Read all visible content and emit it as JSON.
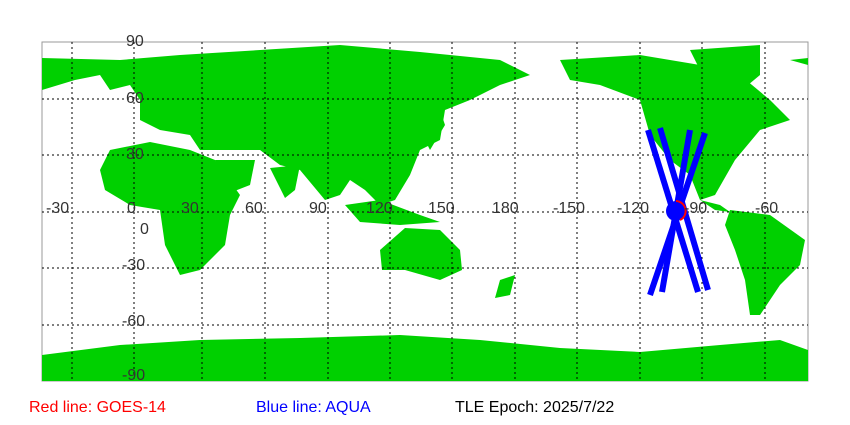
{
  "map": {
    "lon_labels": [
      "-30",
      "0",
      "30",
      "60",
      "90",
      "120",
      "150",
      "180",
      "-150",
      "-120",
      "-90",
      "-60"
    ],
    "lat_labels": [
      "90",
      "60",
      "30",
      "0",
      "-30",
      "-60",
      "-90"
    ],
    "land_color": "#00d000",
    "grid": true,
    "satellites": [
      {
        "name": "GOES-14",
        "color": "#ff0000"
      },
      {
        "name": "AQUA",
        "color": "#0000ff"
      }
    ]
  },
  "legend": {
    "red": "Red line: GOES-14",
    "blue": "Blue line: AQUA",
    "epoch": "TLE Epoch: 2025/7/22"
  }
}
